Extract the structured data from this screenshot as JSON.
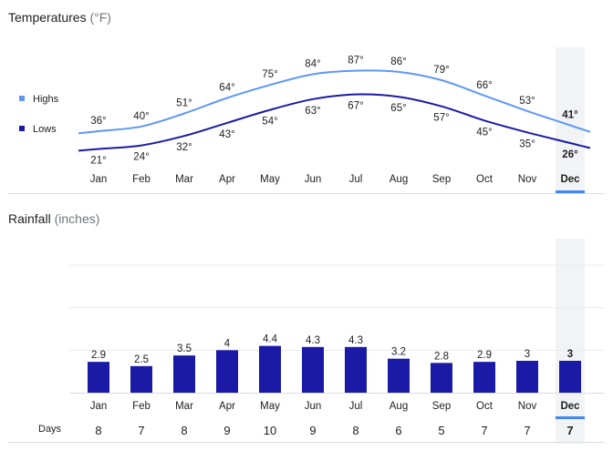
{
  "temperature_section": {
    "title": "Temperatures",
    "unit": "(°F)"
  },
  "rainfall_section": {
    "title": "Rainfall",
    "unit": "(inches)"
  },
  "legend": {
    "highs": "Highs",
    "lows": "Lows"
  },
  "days_label": "Days",
  "selected_month": "Dec",
  "colors": {
    "highs": "#5e97f6",
    "lows": "#1a1aa6",
    "bar": "#1a1aa6",
    "highlight": "#f1f3f4",
    "selected_underline": "#4285f4"
  },
  "chart_data": [
    {
      "type": "line",
      "title": "Temperatures",
      "unit": "°F",
      "categories": [
        "Jan",
        "Feb",
        "Mar",
        "Apr",
        "May",
        "Jun",
        "Jul",
        "Aug",
        "Sep",
        "Oct",
        "Nov",
        "Dec"
      ],
      "series": [
        {
          "name": "Highs",
          "values": [
            36,
            40,
            51,
            64,
            75,
            84,
            87,
            86,
            79,
            66,
            53,
            41
          ],
          "labels": [
            "36°",
            "40°",
            "51°",
            "64°",
            "75°",
            "84°",
            "87°",
            "86°",
            "79°",
            "66°",
            "53°",
            "41°"
          ]
        },
        {
          "name": "Lows",
          "values": [
            21,
            24,
            32,
            43,
            54,
            63,
            67,
            65,
            57,
            45,
            35,
            26
          ],
          "labels": [
            "21°",
            "24°",
            "32°",
            "43°",
            "54°",
            "63°",
            "67°",
            "65°",
            "57°",
            "45°",
            "35°",
            "26°"
          ]
        }
      ],
      "ylim": [
        5,
        110
      ]
    },
    {
      "type": "bar",
      "title": "Rainfall",
      "unit": "inches",
      "categories": [
        "Jan",
        "Feb",
        "Mar",
        "Apr",
        "May",
        "Jun",
        "Jul",
        "Aug",
        "Sep",
        "Oct",
        "Nov",
        "Dec"
      ],
      "values": [
        2.9,
        2.5,
        3.5,
        4,
        4.4,
        4.3,
        4.3,
        3.2,
        2.8,
        2.9,
        3,
        3
      ],
      "labels": [
        "2.9",
        "2.5",
        "3.5",
        "4",
        "4.4",
        "4.3",
        "4.3",
        "3.2",
        "2.8",
        "2.9",
        "3",
        "3"
      ],
      "ylim": [
        0,
        12
      ],
      "days": [
        "8",
        "7",
        "8",
        "9",
        "10",
        "9",
        "8",
        "6",
        "5",
        "7",
        "7",
        "7"
      ]
    }
  ]
}
